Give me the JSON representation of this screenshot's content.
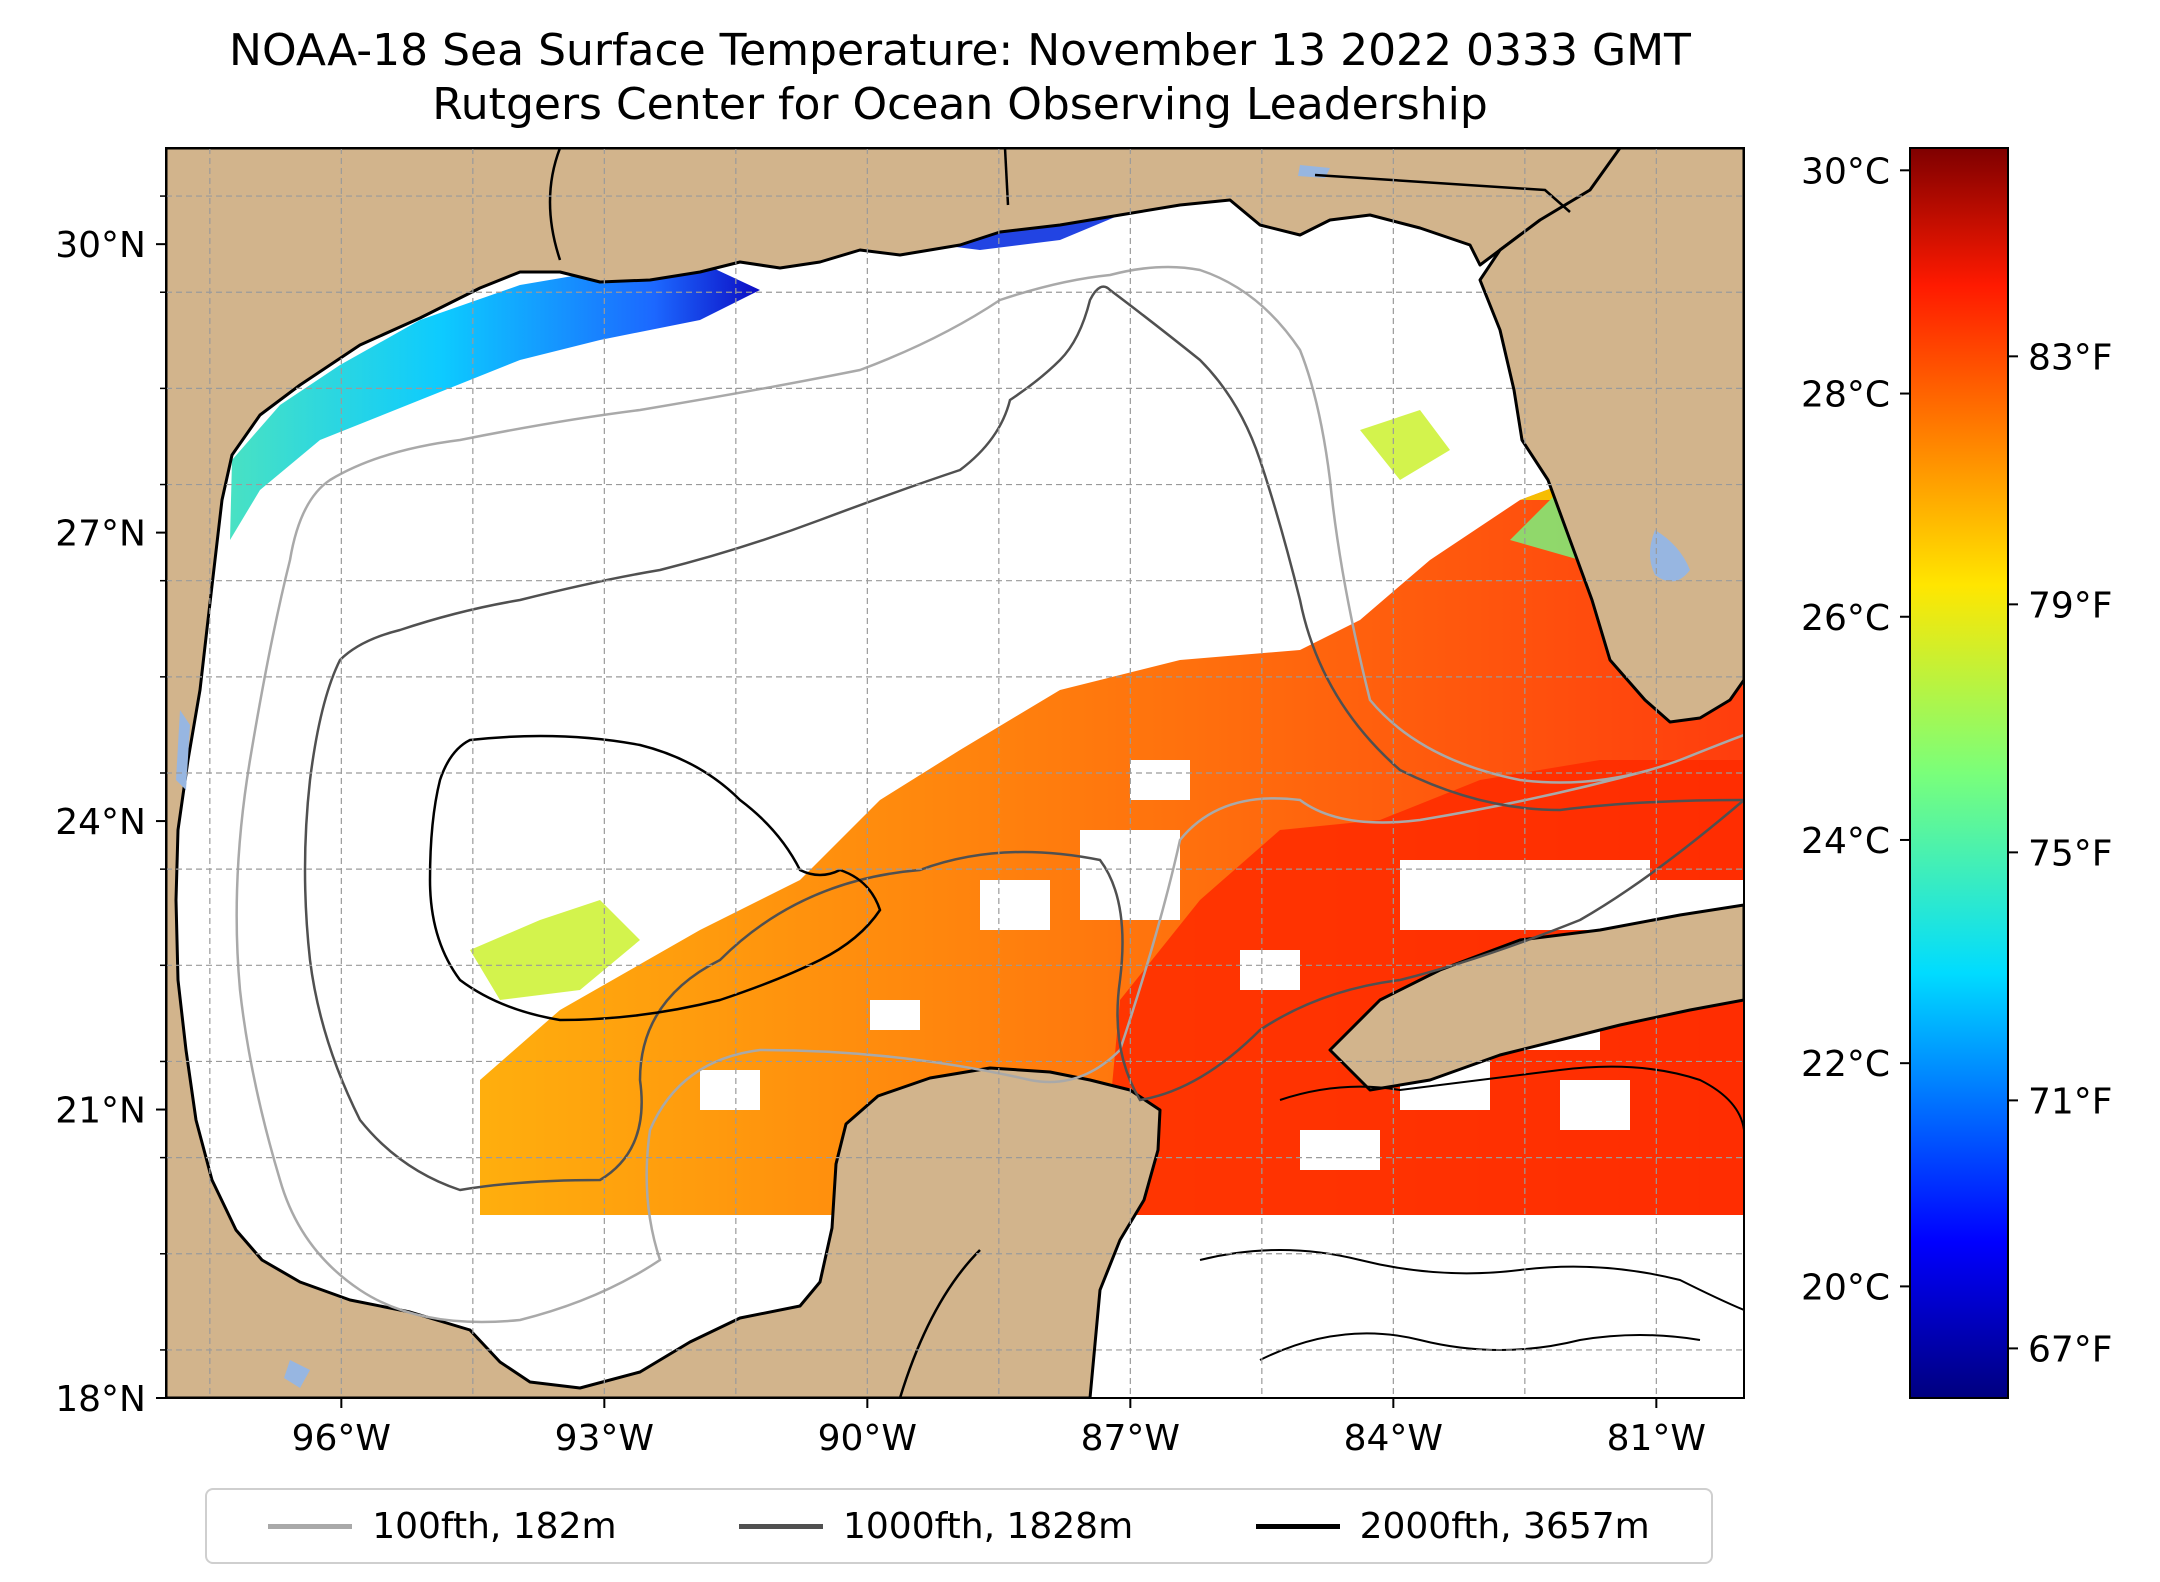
{
  "title": {
    "line1": "NOAA-18 Sea Surface Temperature: November 13 2022 0333 GMT",
    "line2": "Rutgers Center for Ocean Observing Leadership"
  },
  "map": {
    "type": "sea-surface-temperature-map",
    "region": "Gulf of Mexico",
    "lon_range": [
      -98.0,
      -80.0
    ],
    "lat_range": [
      18.0,
      31.0
    ],
    "lon_ticks": [
      {
        "value": -96,
        "label": "96°W"
      },
      {
        "value": -93,
        "label": "93°W"
      },
      {
        "value": -90,
        "label": "90°W"
      },
      {
        "value": -87,
        "label": "87°W"
      },
      {
        "value": -84,
        "label": "84°W"
      },
      {
        "value": -81,
        "label": "81°W"
      }
    ],
    "lat_ticks": [
      {
        "value": 18,
        "label": "18°N"
      },
      {
        "value": 21,
        "label": "21°N"
      },
      {
        "value": 24,
        "label": "24°N"
      },
      {
        "value": 27,
        "label": "27°N"
      },
      {
        "value": 30,
        "label": "30°N"
      }
    ],
    "gridlines": true,
    "land_color": "#d2b48c",
    "ocean_nodata_color": "#ffffff",
    "lake_color": "#97b6e1"
  },
  "colorbar": {
    "colormap": "jet",
    "celsius_range": [
      19.0,
      30.2
    ],
    "celsius_ticks": [
      {
        "value": 20,
        "label": "20°C"
      },
      {
        "value": 22,
        "label": "22°C"
      },
      {
        "value": 24,
        "label": "24°C"
      },
      {
        "value": 26,
        "label": "26°C"
      },
      {
        "value": 28,
        "label": "28°C"
      },
      {
        "value": 30,
        "label": "30°C"
      }
    ],
    "fahrenheit_ticks": [
      {
        "value": 67,
        "label": "67°F"
      },
      {
        "value": 71,
        "label": "71°F"
      },
      {
        "value": 75,
        "label": "75°F"
      },
      {
        "value": 79,
        "label": "79°F"
      },
      {
        "value": 83,
        "label": "83°F"
      }
    ]
  },
  "legend": {
    "placement": "bottom-center",
    "items": [
      {
        "label": "100fth, 182m",
        "color": "#a9a9a9"
      },
      {
        "label": "1000fth, 1828m",
        "color": "#505050"
      },
      {
        "label": "2000fth, 3657m",
        "color": "#000000"
      }
    ]
  }
}
